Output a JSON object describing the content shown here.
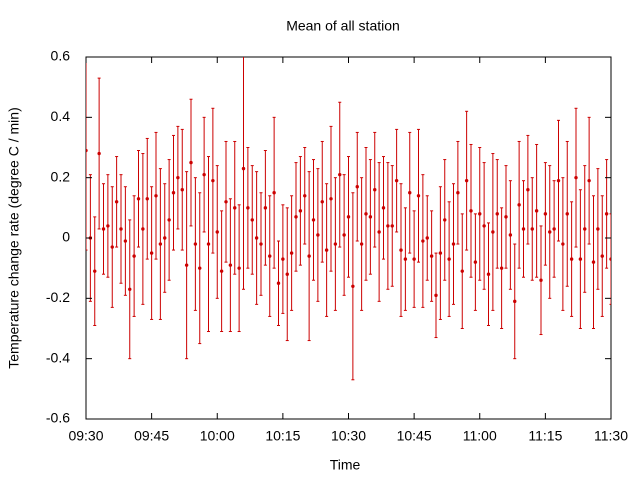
{
  "chart_data": {
    "type": "errorbar",
    "title": "Mean of all station",
    "xlabel": "Time",
    "ylabel": "Temperature change rate (degree C / min)",
    "x": [
      "09:30",
      "09:31",
      "09:32",
      "09:33",
      "09:34",
      "09:35",
      "09:36",
      "09:37",
      "09:38",
      "09:39",
      "09:40",
      "09:41",
      "09:42",
      "09:43",
      "09:44",
      "09:45",
      "09:46",
      "09:47",
      "09:48",
      "09:49",
      "09:50",
      "09:51",
      "09:52",
      "09:53",
      "09:54",
      "09:55",
      "09:56",
      "09:57",
      "09:58",
      "09:59",
      "10:00",
      "10:01",
      "10:02",
      "10:03",
      "10:04",
      "10:05",
      "10:06",
      "10:07",
      "10:08",
      "10:09",
      "10:10",
      "10:11",
      "10:12",
      "10:13",
      "10:14",
      "10:15",
      "10:16",
      "10:17",
      "10:18",
      "10:19",
      "10:20",
      "10:21",
      "10:22",
      "10:23",
      "10:24",
      "10:25",
      "10:26",
      "10:27",
      "10:28",
      "10:29",
      "10:30",
      "10:31",
      "10:32",
      "10:33",
      "10:34",
      "10:35",
      "10:36",
      "10:37",
      "10:38",
      "10:39",
      "10:40",
      "10:41",
      "10:42",
      "10:43",
      "10:44",
      "10:45",
      "10:46",
      "10:47",
      "10:48",
      "10:49",
      "10:50",
      "10:51",
      "10:52",
      "10:53",
      "10:54",
      "10:55",
      "10:56",
      "10:57",
      "10:58",
      "10:59",
      "11:00",
      "11:01",
      "11:02",
      "11:03",
      "11:04",
      "11:05",
      "11:06",
      "11:07",
      "11:08",
      "11:09",
      "11:10",
      "11:11",
      "11:12",
      "11:13",
      "11:14",
      "11:15",
      "11:16",
      "11:17",
      "11:18",
      "11:19",
      "11:20",
      "11:21",
      "11:22",
      "11:23",
      "11:24",
      "11:25",
      "11:26",
      "11:27",
      "11:28",
      "11:29",
      "11:30"
    ],
    "series": [
      {
        "color": "#cc0000",
        "values": [
          0.29,
          0.0,
          -0.11,
          0.28,
          0.03,
          0.04,
          -0.03,
          0.12,
          0.03,
          -0.01,
          -0.17,
          -0.06,
          0.13,
          0.03,
          0.13,
          -0.05,
          0.14,
          -0.02,
          0.0,
          0.06,
          0.15,
          0.2,
          0.16,
          -0.09,
          0.25,
          -0.02,
          -0.1,
          0.21,
          -0.02,
          0.19,
          0.02,
          -0.11,
          0.12,
          -0.09,
          0.1,
          -0.1,
          0.23,
          0.1,
          0.06,
          0.0,
          -0.02,
          0.1,
          -0.06,
          0.15,
          -0.15,
          -0.07,
          -0.12,
          -0.05,
          0.07,
          0.09,
          0.14,
          -0.06,
          0.06,
          0.01,
          0.12,
          -0.04,
          0.13,
          -0.02,
          0.21,
          0.01,
          0.07,
          -0.16,
          0.17,
          -0.02,
          0.08,
          0.07,
          0.16,
          0.02,
          0.1,
          0.04,
          0.04,
          0.19,
          -0.04,
          -0.07,
          0.15,
          -0.07,
          0.14,
          -0.01,
          0.0,
          -0.06,
          -0.19,
          -0.05,
          0.06,
          -0.07,
          -0.02,
          0.15,
          -0.11,
          0.19,
          0.09,
          -0.08,
          0.08,
          0.04,
          -0.12,
          0.02,
          0.08,
          -0.1,
          0.07,
          0.01,
          -0.21,
          0.11,
          0.03,
          0.16,
          0.03,
          0.09,
          -0.14,
          0.08,
          0.02,
          0.03,
          0.19,
          -0.02,
          0.08,
          -0.07,
          0.2,
          -0.07,
          0.03,
          0.19,
          -0.08,
          0.03,
          -0.06,
          0.08,
          -0.07
        ],
        "errors": [
          0.33,
          0.21,
          0.18,
          0.25,
          0.15,
          0.17,
          0.2,
          0.15,
          0.18,
          0.18,
          0.23,
          0.2,
          0.16,
          0.25,
          0.2,
          0.22,
          0.21,
          0.25,
          0.18,
          0.2,
          0.19,
          0.17,
          0.2,
          0.31,
          0.21,
          0.22,
          0.25,
          0.19,
          0.29,
          0.24,
          0.22,
          0.2,
          0.2,
          0.22,
          0.22,
          0.21,
          0.4,
          0.2,
          0.18,
          0.22,
          0.17,
          0.19,
          0.2,
          0.25,
          0.14,
          0.18,
          0.22,
          0.19,
          0.18,
          0.18,
          0.16,
          0.28,
          0.2,
          0.22,
          0.2,
          0.22,
          0.24,
          0.22,
          0.24,
          0.2,
          0.2,
          0.31,
          0.18,
          0.22,
          0.22,
          0.19,
          0.19,
          0.23,
          0.17,
          0.21,
          0.2,
          0.17,
          0.22,
          0.17,
          0.2,
          0.16,
          0.22,
          0.22,
          0.14,
          0.15,
          0.14,
          0.22,
          0.2,
          0.19,
          0.2,
          0.17,
          0.19,
          0.23,
          0.22,
          0.16,
          0.22,
          0.21,
          0.17,
          0.26,
          0.18,
          0.2,
          0.17,
          0.18,
          0.19,
          0.21,
          0.16,
          0.18,
          0.17,
          0.22,
          0.18,
          0.17,
          0.22,
          0.16,
          0.2,
          0.22,
          0.24,
          0.19,
          0.23,
          0.23,
          0.21,
          0.21,
          0.22,
          0.2,
          0.2,
          0.18,
          0.15
        ]
      }
    ],
    "xlim": [
      "09:30",
      "11:30"
    ],
    "xticks": [
      "09:30",
      "09:45",
      "10:00",
      "10:15",
      "10:30",
      "10:45",
      "11:00",
      "11:15",
      "11:30"
    ],
    "ylim": [
      -0.6,
      0.6
    ],
    "yticks": [
      -0.6,
      -0.4,
      -0.2,
      0,
      0.2,
      0.4,
      0.6
    ],
    "grid": false
  }
}
